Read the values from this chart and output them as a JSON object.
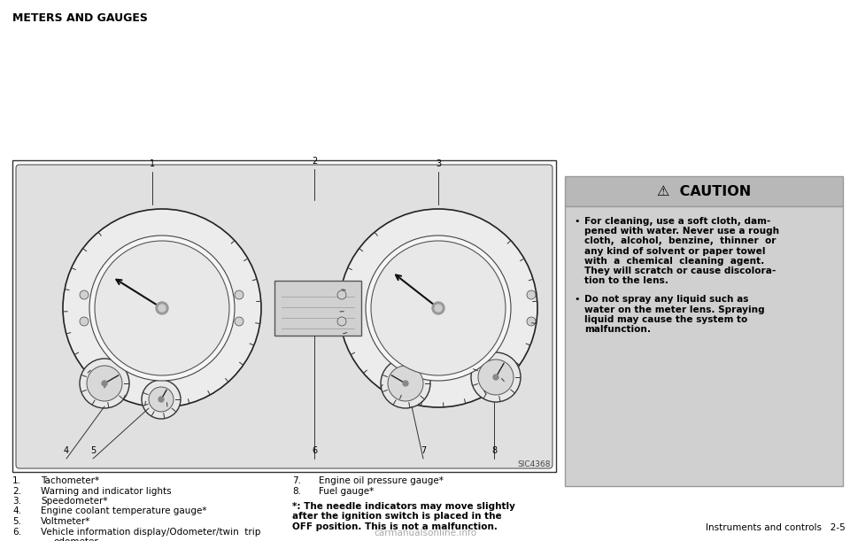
{
  "page_title": "METERS AND GAUGES",
  "page_bg": "#ffffff",
  "diagram_ref": "SIC4368",
  "list_items_left": [
    [
      "1.",
      "Tachometer*"
    ],
    [
      "2.",
      "Warning and indicator lights"
    ],
    [
      "3.",
      "Speedometer*"
    ],
    [
      "4.",
      "Engine coolant temperature gauge*"
    ],
    [
      "5.",
      "Voltmeter*"
    ],
    [
      "6.",
      "Vehicle information display/Odometer/twin  trip"
    ]
  ],
  "list_items_right": [
    [
      "7.",
      "Engine oil pressure gauge*"
    ],
    [
      "8.",
      "Fuel gauge*"
    ]
  ],
  "caution_title": "CAUTION",
  "caution_header_bg": "#b8b8b8",
  "caution_body_bg": "#d0d0d0",
  "caution_border": "#999999",
  "caution_bullet1_lines": [
    "For cleaning, use a soft cloth, dam-",
    "pened with water. Never use a rough",
    "cloth,  alcohol,  benzine,  thinner  or",
    "any kind of solvent or paper towel",
    "with  a  chemical  cleaning  agent.",
    "They will scratch or cause discolora-",
    "tion to the lens."
  ],
  "caution_bullet2_lines": [
    "Do not spray any liquid such as",
    "water on the meter lens. Spraying",
    "liquid may cause the system to",
    "malfunction."
  ],
  "note_lines": [
    "*: The needle indicators may move slightly",
    "after the ignition switch is placed in the",
    "OFF position. This is not a malfunction."
  ],
  "footer_right": "Instruments and controls   2-5",
  "footer_watermark": "carmanualsonline.info"
}
